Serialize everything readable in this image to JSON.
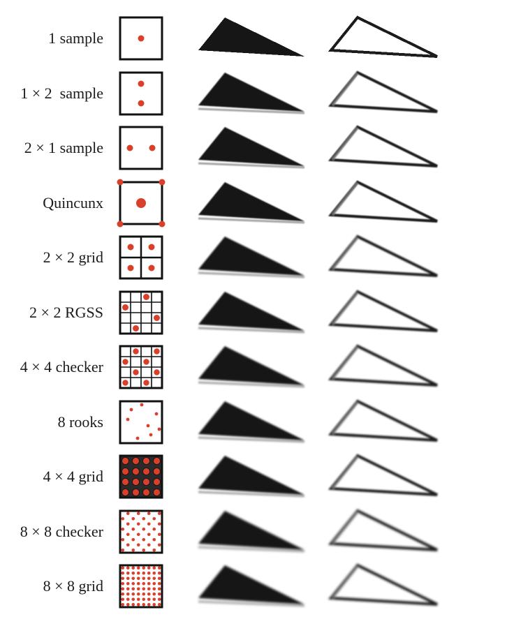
{
  "accent_color": "#d8402b",
  "rows": [
    {
      "label": "1 sample",
      "pattern": "single"
    },
    {
      "label": "1 × 2  sample",
      "pattern": "vertical-pair"
    },
    {
      "label": "2 × 1 sample",
      "pattern": "horizontal-pair"
    },
    {
      "label": "Quincunx",
      "pattern": "quincunx"
    },
    {
      "label": "2 × 2 grid",
      "pattern": "grid-2x2"
    },
    {
      "label": "2 × 2 RGSS",
      "pattern": "rgss"
    },
    {
      "label": "4 × 4 checker",
      "pattern": "checker-4x4"
    },
    {
      "label": "8 rooks",
      "pattern": "rooks-8"
    },
    {
      "label": "4 × 4 grid",
      "pattern": "grid-4x4"
    },
    {
      "label": "8 × 8 checker",
      "pattern": "checker-8x8"
    },
    {
      "label": "8 × 8 grid",
      "pattern": "grid-8x8"
    }
  ]
}
